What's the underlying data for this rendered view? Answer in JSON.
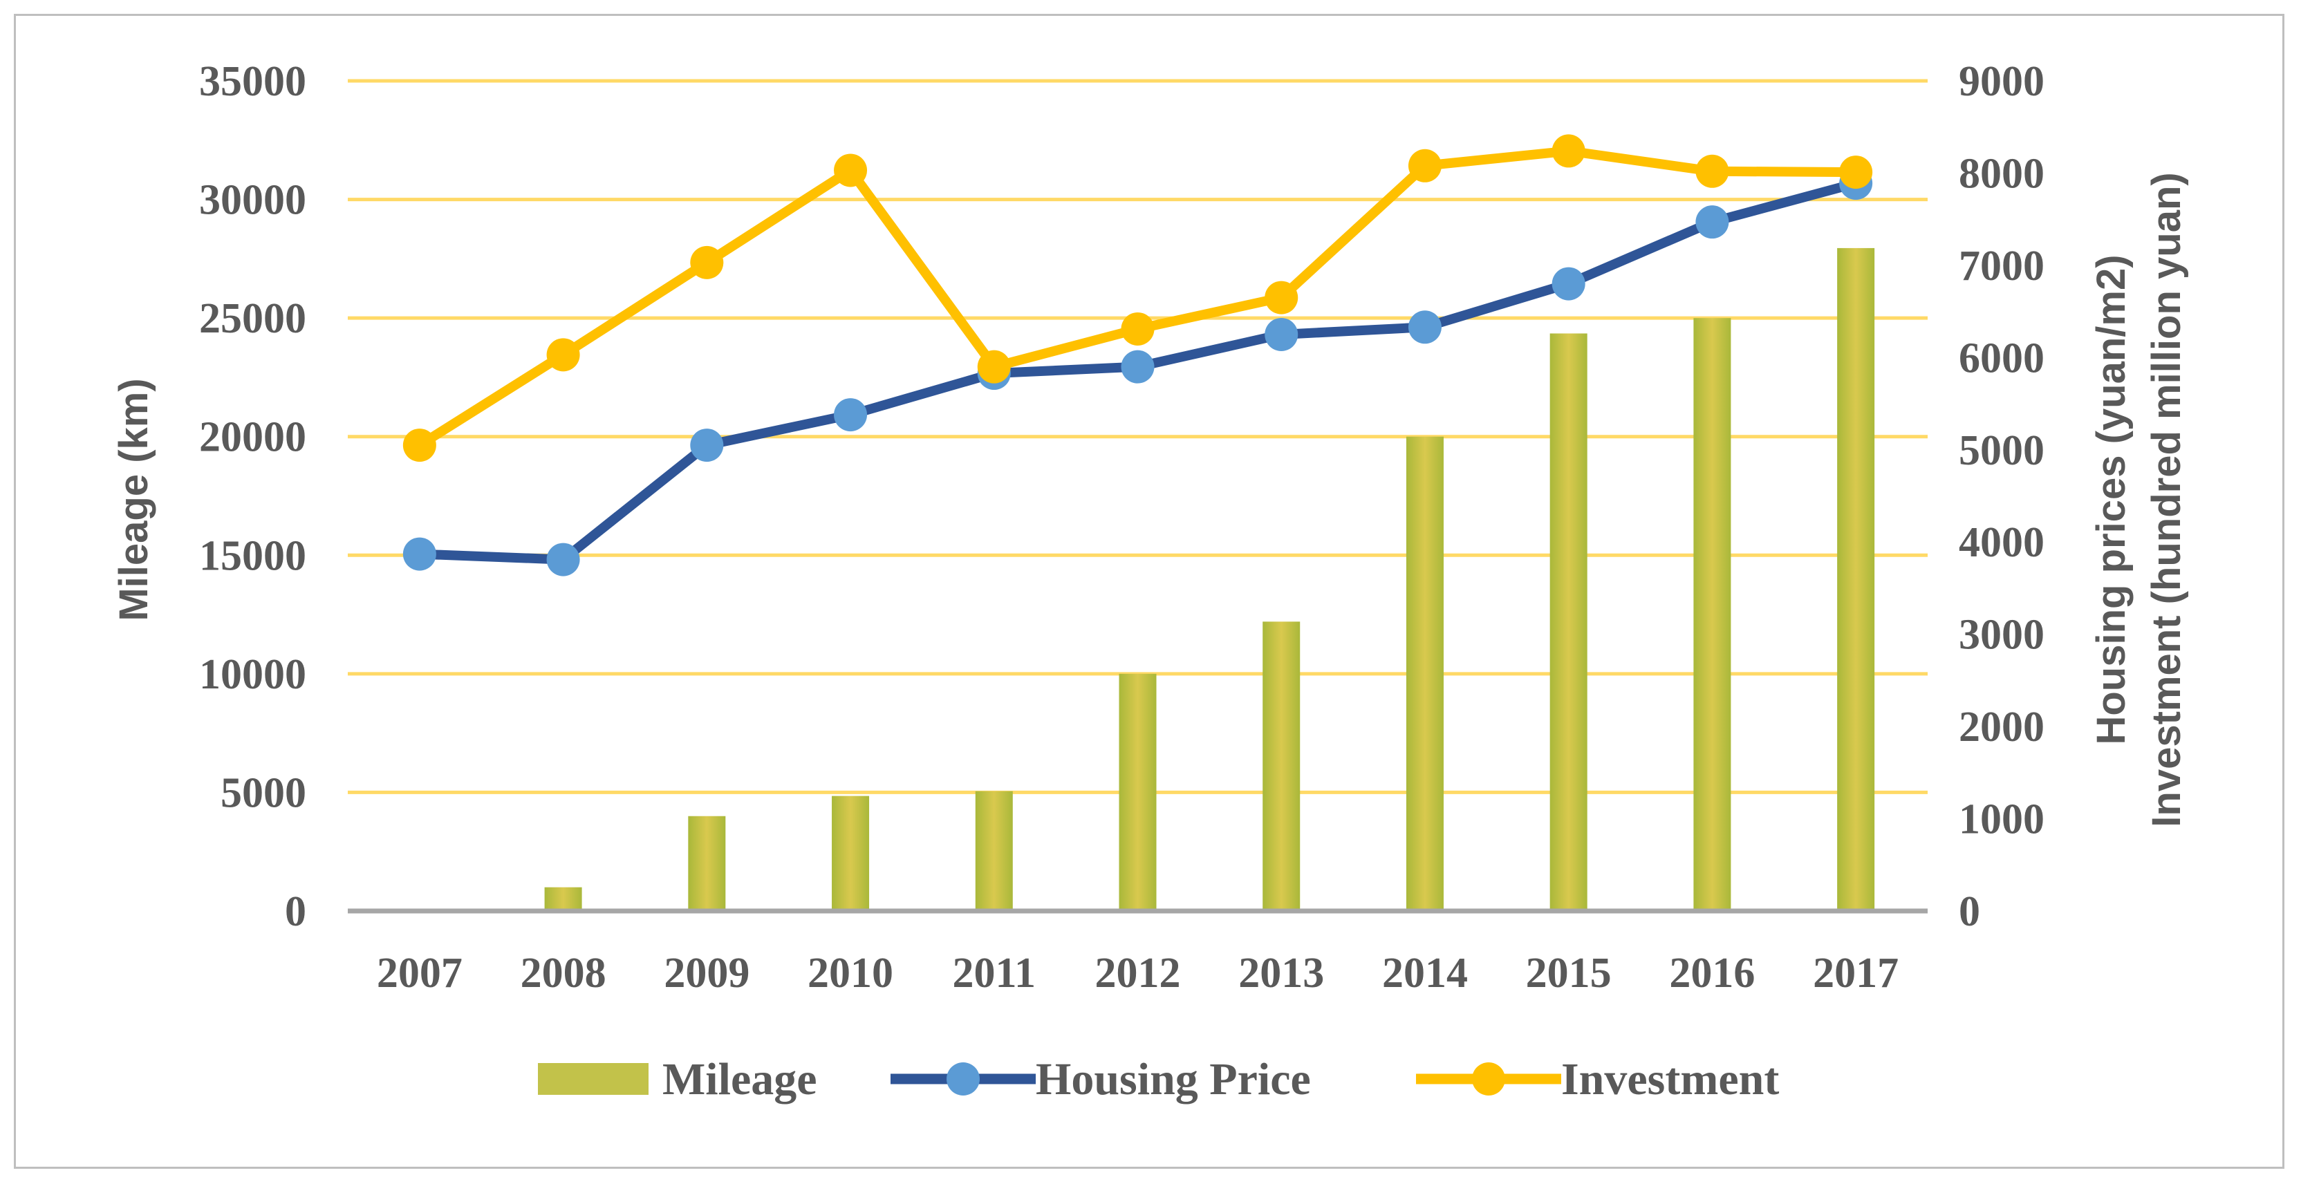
{
  "chart_data": {
    "type": "bar",
    "title": "",
    "categories": [
      "2007",
      "2008",
      "2009",
      "2010",
      "2011",
      "2012",
      "2013",
      "2014",
      "2015",
      "2016",
      "2017"
    ],
    "series": [
      {
        "name": "Mileage",
        "type": "bar",
        "axis": "left",
        "color": "#c2c24a",
        "values": [
          0,
          1000,
          4000,
          4850,
          5050,
          10000,
          12200,
          20000,
          24350,
          25000,
          27950
        ]
      },
      {
        "name": "Housing Price",
        "type": "line",
        "axis": "right",
        "color": "#2f5597",
        "marker_color": "#5b9bd5",
        "values": [
          3870,
          3810,
          5050,
          5380,
          5830,
          5900,
          6250,
          6330,
          6800,
          7470,
          7890
        ]
      },
      {
        "name": "Investment",
        "type": "line",
        "axis": "right",
        "color": "#ffc000",
        "marker_color": "#ffc000",
        "values": [
          5050,
          6030,
          7030,
          8030,
          5900,
          6310,
          6650,
          8080,
          8240,
          8020,
          8010
        ]
      }
    ],
    "y_left": {
      "label": "Mileage (km)",
      "ylim": [
        0,
        35000
      ],
      "ticks": [
        "0",
        "5000",
        "10000",
        "15000",
        "20000",
        "25000",
        "30000",
        "35000"
      ]
    },
    "y_right": {
      "label_line1": "Housing prices (yuan/m2)",
      "label_line2": "Investment (hundred million yuan)",
      "ylim": [
        0,
        9000
      ],
      "ticks": [
        "0",
        "1000",
        "2000",
        "3000",
        "4000",
        "5000",
        "6000",
        "7000",
        "8000",
        "9000"
      ]
    },
    "grid": true,
    "gridline_color": "#ffd966",
    "legend": {
      "position": "bottom",
      "entries": [
        "Mileage",
        "Housing Price",
        "Investment"
      ]
    }
  }
}
